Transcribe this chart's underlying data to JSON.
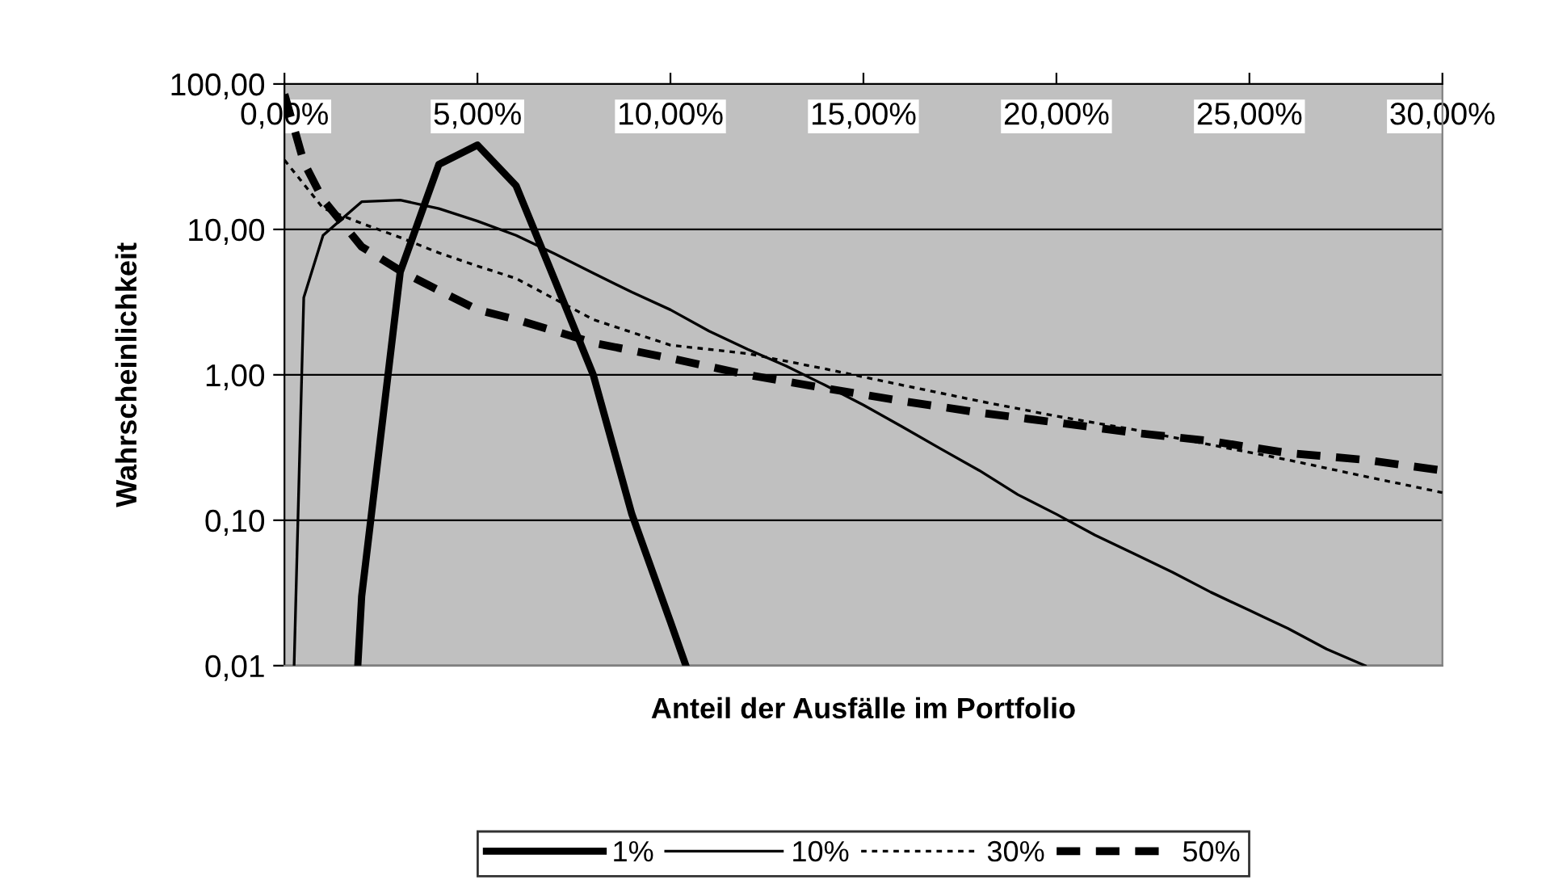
{
  "chart_data": {
    "type": "line",
    "xlabel": "Anteil der Ausfälle im Portfolio",
    "ylabel": "Wahrscheinlichkeit",
    "log": "y",
    "xlim": [
      0,
      30
    ],
    "xticks": [
      {
        "value": 0,
        "label": "0,00%"
      },
      {
        "value": 5,
        "label": "5,00%"
      },
      {
        "value": 10,
        "label": "10,00%"
      },
      {
        "value": 15,
        "label": "15,00%"
      },
      {
        "value": 20,
        "label": "20,00%"
      },
      {
        "value": 25,
        "label": "25,00%"
      },
      {
        "value": 30,
        "label": "30,00%"
      }
    ],
    "ylim": [
      0.01,
      100
    ],
    "yticks": [
      {
        "value": 0.01,
        "label": "0,01"
      },
      {
        "value": 0.1,
        "label": "0,10"
      },
      {
        "value": 1,
        "label": "1,00"
      },
      {
        "value": 10,
        "label": "10,00"
      },
      {
        "value": 100,
        "label": "100,00"
      }
    ],
    "grid": "y",
    "legend": "bottom",
    "marker": "none",
    "series": [
      {
        "name": "1%",
        "color": "#000000",
        "line_style": "solid",
        "x": [
          1.9,
          2,
          3,
          4,
          5,
          6,
          7,
          8,
          9,
          10,
          10.4
        ],
        "values": [
          0.01,
          0.03,
          5.1,
          28,
          38,
          20,
          4.5,
          1.0,
          0.11,
          0.02,
          0.01
        ]
      },
      {
        "name": "10%",
        "color": "#000000",
        "line_style": "solid",
        "x": [
          0.25,
          0.5,
          1,
          2,
          3,
          4,
          5,
          6,
          7,
          8,
          9,
          10,
          11,
          12,
          13,
          14,
          15,
          16,
          17,
          18,
          19,
          20,
          21,
          22,
          23,
          24,
          25,
          26,
          27,
          28
        ],
        "values": [
          0.01,
          3.4,
          9.1,
          15.5,
          15.9,
          13.9,
          11.4,
          9.1,
          6.8,
          5.0,
          3.7,
          2.8,
          2.0,
          1.5,
          1.15,
          0.85,
          0.62,
          0.44,
          0.31,
          0.22,
          0.15,
          0.11,
          0.079,
          0.059,
          0.044,
          0.032,
          0.024,
          0.018,
          0.013,
          0.01
        ]
      },
      {
        "name": "30%",
        "color": "#000000",
        "line_style": "dotted",
        "x": [
          0,
          1,
          2,
          3,
          4,
          5,
          6,
          8,
          10,
          12,
          14,
          16,
          18,
          20,
          22,
          24,
          26,
          28,
          30
        ],
        "values": [
          30,
          14,
          11,
          8.8,
          6.9,
          5.6,
          4.6,
          2.4,
          1.6,
          1.4,
          1.1,
          0.85,
          0.66,
          0.52,
          0.42,
          0.33,
          0.26,
          0.2,
          0.155
        ]
      },
      {
        "name": "50%",
        "color": "#000000",
        "line_style": "dashed",
        "x": [
          0,
          0.5,
          1,
          2,
          3,
          4,
          5,
          6,
          7,
          8,
          9,
          10,
          12,
          14,
          16,
          18,
          20,
          22,
          24,
          26,
          28,
          30
        ],
        "values": [
          85,
          29,
          16,
          7.6,
          5.2,
          3.8,
          2.8,
          2.4,
          2.0,
          1.66,
          1.47,
          1.3,
          1.0,
          0.81,
          0.66,
          0.55,
          0.47,
          0.4,
          0.35,
          0.29,
          0.26,
          0.22
        ]
      }
    ]
  }
}
